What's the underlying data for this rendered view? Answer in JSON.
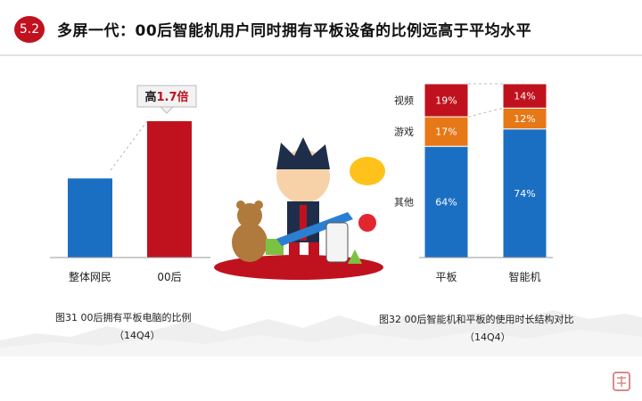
{
  "header": {
    "section_number": "5.2",
    "title": "多屏一代：00后智能机用户同时拥有平板设备的比例远高于平均水平"
  },
  "chart_data": [
    {
      "type": "bar",
      "categories": [
        "整体网民",
        "00后"
      ],
      "values": [
        0.58,
        1.0
      ],
      "colors": [
        "#1b6fc2",
        "#c0121e"
      ],
      "annotation": {
        "prefix": "高",
        "value": "1.7倍"
      },
      "caption": "图31 00后拥有平板电脑的比例",
      "caption_sub": "（14Q4）",
      "grid": false
    },
    {
      "type": "bar",
      "stacked": true,
      "categories": [
        "平板",
        "智能机"
      ],
      "series": [
        {
          "name": "其他",
          "values": [
            64,
            74
          ],
          "color": "#1b6fc2"
        },
        {
          "name": "游戏",
          "values": [
            17,
            12
          ],
          "color": "#e67817"
        },
        {
          "name": "视频",
          "values": [
            19,
            14
          ],
          "color": "#c0121e"
        }
      ],
      "value_suffix": "%",
      "caption": "图32  00后智能机和平板的使用时长结构对比",
      "caption_sub": "（14Q4）",
      "grid": false
    }
  ],
  "icons": [
    "mascot-illustration",
    "mountain-watermark",
    "seal-icon"
  ]
}
